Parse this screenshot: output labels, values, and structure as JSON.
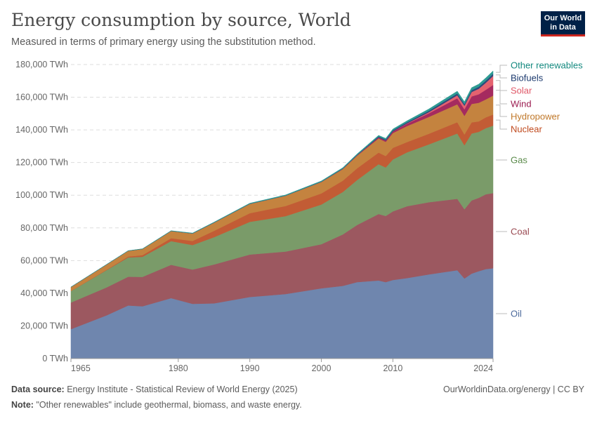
{
  "header": {
    "title": "Energy consumption by source, World",
    "subtitle": "Measured in terms of primary energy using the substitution method.",
    "logo": "Our World in Data"
  },
  "footer": {
    "source_label": "Data source:",
    "source": "Energy Institute - Statistical Review of World Energy (2025)",
    "note_label": "Note:",
    "note": "\"Other renewables\" include geothermal, biomass, and waste energy.",
    "link": "OurWorldinData.org/energy | CC BY"
  },
  "chart_data": {
    "type": "area",
    "stacked": true,
    "title": "Energy consumption by source, World",
    "xlabel": "",
    "ylabel": "",
    "unit": "TWh",
    "xlim": [
      1965,
      2024
    ],
    "ylim": [
      0,
      180000
    ],
    "grid": "horizontal dashed",
    "legend": "right, inline labels",
    "x_ticks": [
      "1965",
      "1980",
      "1990",
      "2000",
      "2010",
      "2024"
    ],
    "y_ticks": [
      "0 TWh",
      "20,000 TWh",
      "40,000 TWh",
      "60,000 TWh",
      "80,000 TWh",
      "100,000 TWh",
      "120,000 TWh",
      "140,000 TWh",
      "160,000 TWh",
      "180,000 TWh"
    ],
    "x": [
      1965,
      1970,
      1973,
      1975,
      1979,
      1982,
      1985,
      1990,
      1995,
      2000,
      2003,
      2005,
      2008,
      2009,
      2010,
      2012,
      2015,
      2019,
      2020,
      2021,
      2022,
      2023,
      2024
    ],
    "series": [
      {
        "name": "Oil",
        "color": "#6f86ae",
        "label_color": "#4c6a9c",
        "values": [
          18000,
          26500,
          32500,
          32000,
          37000,
          33500,
          33800,
          37700,
          39500,
          43000,
          44500,
          46800,
          47800,
          46800,
          48100,
          49300,
          51500,
          54100,
          49000,
          52000,
          53500,
          54800,
          55300
        ]
      },
      {
        "name": "Coal",
        "color": "#9c5860",
        "label_color": "#9a4a52",
        "values": [
          16300,
          17100,
          17600,
          18000,
          20400,
          21000,
          23800,
          26000,
          26000,
          27000,
          31500,
          35000,
          40700,
          40500,
          42000,
          44000,
          44200,
          43700,
          42400,
          44800,
          44900,
          45800,
          46000
        ]
      },
      {
        "name": "Gas",
        "color": "#7a9b69",
        "label_color": "#5a8a4a",
        "values": [
          7000,
          10600,
          11800,
          12300,
          14500,
          15000,
          16700,
          20000,
          21700,
          24300,
          26000,
          27500,
          30500,
          29700,
          31800,
          33000,
          35400,
          40000,
          39200,
          41000,
          40400,
          40500,
          41300
        ]
      },
      {
        "name": "Nuclear",
        "color": "#c25c35",
        "label_color": "#c04a1e",
        "values": [
          70,
          220,
          560,
          1000,
          1800,
          2500,
          3900,
          5300,
          6200,
          6800,
          6900,
          7200,
          7100,
          7000,
          7100,
          6300,
          6500,
          6900,
          6600,
          6800,
          6400,
          6600,
          6800
        ]
      },
      {
        "name": "Hydropower",
        "color": "#c4833f",
        "label_color": "#c0782a",
        "values": [
          2400,
          3200,
          3500,
          3800,
          4400,
          4600,
          5000,
          5700,
          6300,
          7000,
          7100,
          7700,
          8700,
          8700,
          9100,
          9800,
          10300,
          11000,
          11400,
          11300,
          11400,
          11000,
          11600
        ]
      },
      {
        "name": "Wind",
        "color": "#a52a5f",
        "label_color": "#9b1c50",
        "values": [
          0,
          0,
          0,
          0,
          1,
          3,
          6,
          10,
          20,
          80,
          170,
          270,
          590,
          740,
          900,
          1400,
          2200,
          3700,
          4000,
          4600,
          5200,
          5900,
          6500
        ]
      },
      {
        "name": "Solar",
        "color": "#e4626f",
        "label_color": "#e05868",
        "values": [
          0,
          0,
          0,
          0,
          0,
          0,
          0,
          1,
          1,
          3,
          6,
          11,
          40,
          55,
          85,
          250,
          680,
          1800,
          2200,
          2700,
          3400,
          4300,
          5500
        ]
      },
      {
        "name": "Biofuels",
        "color": "#2c4a7c",
        "label_color": "#1c3a6e",
        "values": [
          0,
          0,
          0,
          0,
          20,
          40,
          60,
          70,
          70,
          110,
          170,
          230,
          530,
          580,
          650,
          690,
          860,
          1100,
          1000,
          1100,
          1200,
          1300,
          1350
        ]
      },
      {
        "name": "Other renewables",
        "color": "#2e9b93",
        "label_color": "#14897f",
        "values": [
          50,
          90,
          110,
          130,
          170,
          210,
          260,
          330,
          390,
          450,
          520,
          570,
          690,
          730,
          780,
          880,
          1100,
          1400,
          1450,
          1550,
          1600,
          1700,
          1750
        ]
      }
    ]
  }
}
